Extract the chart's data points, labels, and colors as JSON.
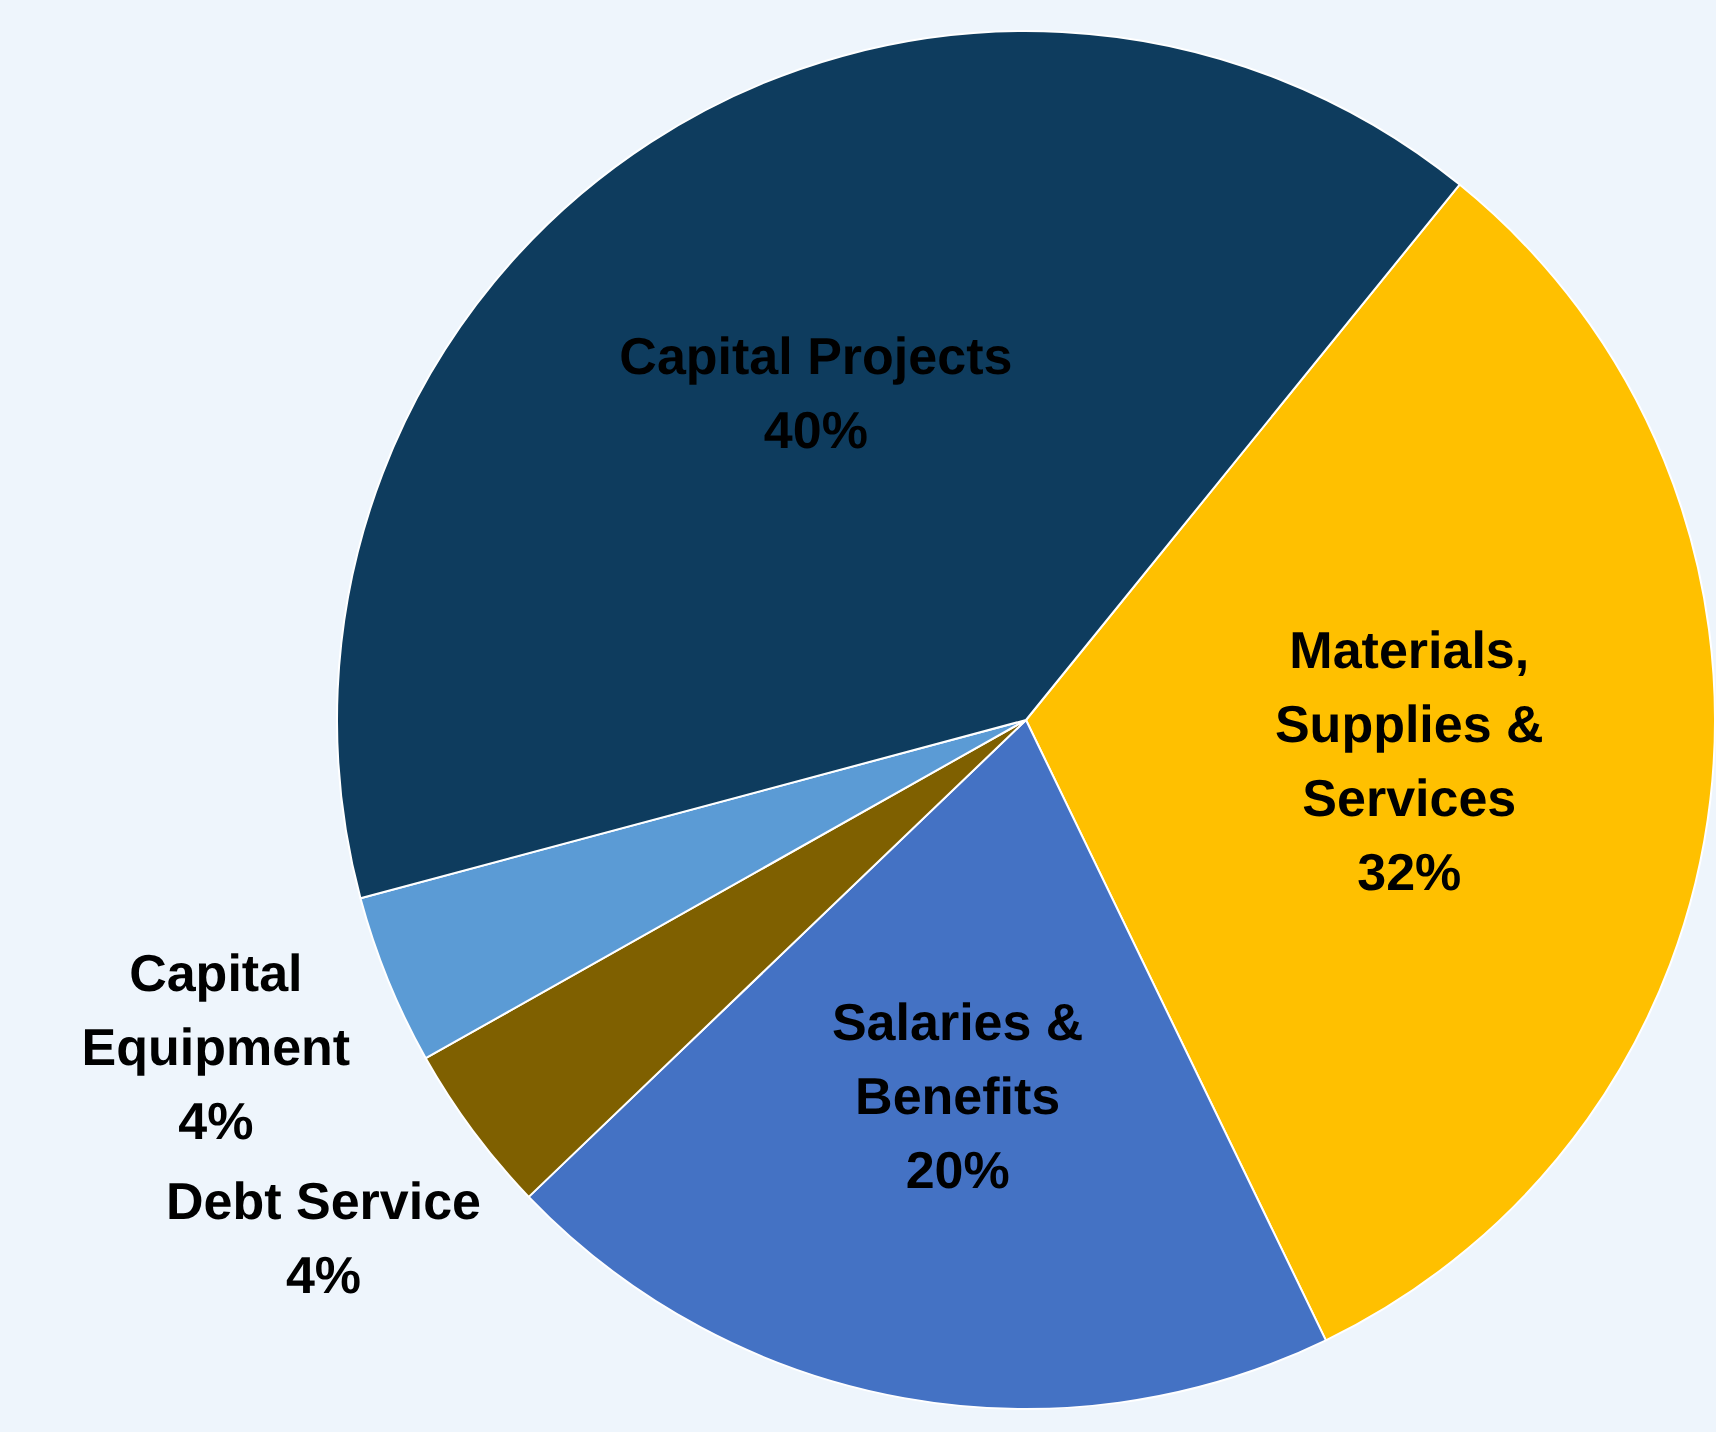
{
  "chart_data": {
    "type": "pie",
    "categories": [
      "Materials, Supplies & Services",
      "Salaries & Benefits",
      "Debt Service",
      "Capital Equipment",
      "Capital Projects"
    ],
    "values": [
      32,
      20,
      4,
      4,
      40
    ],
    "colors": [
      "#ffc000",
      "#4472c4",
      "#7f6000",
      "#5b9bd5",
      "#0e3c5e"
    ],
    "value_labels": [
      "32%",
      "20%",
      "4%",
      "4%",
      "40%"
    ],
    "legend": false
  }
}
